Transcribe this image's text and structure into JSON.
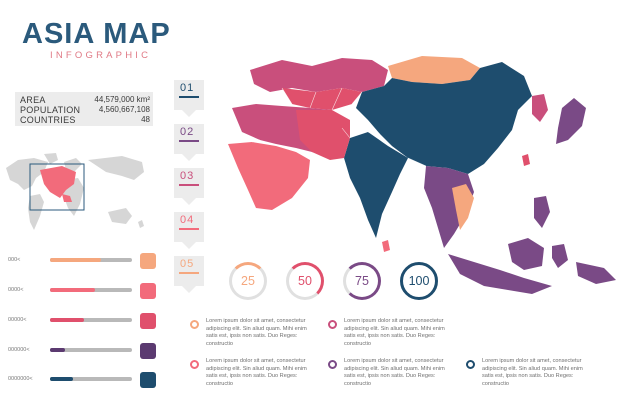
{
  "title": "ASIA MAP",
  "subtitle": "INFOGRAPHIC",
  "stats": [
    {
      "label": "AREA",
      "value": "44,579,000 km²"
    },
    {
      "label": "POPULATION",
      "value": "4,560,667,108"
    },
    {
      "label": "COUNTRIES",
      "value": "48"
    }
  ],
  "colors": {
    "peach": "#f5a77e",
    "coral": "#f26b7b",
    "rose": "#c94f7c",
    "plum": "#7a4a86",
    "navy": "#1e4d6e",
    "gray": "#d9d9d9"
  },
  "bars": [
    {
      "label": "000<",
      "fill": 0.62,
      "color": "#f5a77e"
    },
    {
      "label": "0000<",
      "fill": 0.55,
      "color": "#f26b7b"
    },
    {
      "label": "00000<",
      "fill": 0.42,
      "color": "#e0506c"
    },
    {
      "label": "000000<",
      "fill": 0.18,
      "color": "#5b3a70"
    },
    {
      "label": "0000000<",
      "fill": 0.28,
      "color": "#1e4d6e"
    }
  ],
  "tags": [
    {
      "label": "01",
      "color": "#1e4d6e"
    },
    {
      "label": "02",
      "color": "#7a4a86"
    },
    {
      "label": "03",
      "color": "#c94f7c"
    },
    {
      "label": "04",
      "color": "#f26b7b"
    },
    {
      "label": "05",
      "color": "#f5a77e"
    }
  ],
  "gauges": [
    {
      "label": "25",
      "value": 25,
      "color": "#f5a77e"
    },
    {
      "label": "50",
      "value": 50,
      "color": "#e0506c"
    },
    {
      "label": "75",
      "value": 75,
      "color": "#7a4a86"
    },
    {
      "label": "100",
      "value": 100,
      "color": "#1e4d6e"
    }
  ],
  "legend": [
    {
      "text": "Lorem ipsum dolor sit amet, consectetur adipiscing elit. Sin aliud quam. Mihi enim satis est, ipsis non satis. Duo Reges: constructio",
      "color": "#f5a77e"
    },
    {
      "text": "Lorem ipsum dolor sit amet, consectetur adipiscing elit. Sin aliud quam. Mihi enim satis est, ipsis non satis. Duo Reges: constructio",
      "color": "#c94f7c"
    },
    {
      "text": "Lorem ipsum dolor sit amet, consectetur adipiscing elit. Sin aliud quam. Mihi enim satis est, ipsis non satis. Duo Reges: constructio",
      "color": "#f26b7b"
    },
    {
      "text": "Lorem ipsum dolor sit amet, consectetur adipiscing elit. Sin aliud quam. Mihi enim satis est, ipsis non satis. Duo Reges: constructio",
      "color": "#7a4a86"
    },
    {
      "text": "Lorem ipsum dolor sit amet, consectetur adipiscing elit. Sin aliud quam. Mihi enim satis est, ipsis non satis. Duo Reges: constructio",
      "color": "#1e4d6e"
    }
  ]
}
